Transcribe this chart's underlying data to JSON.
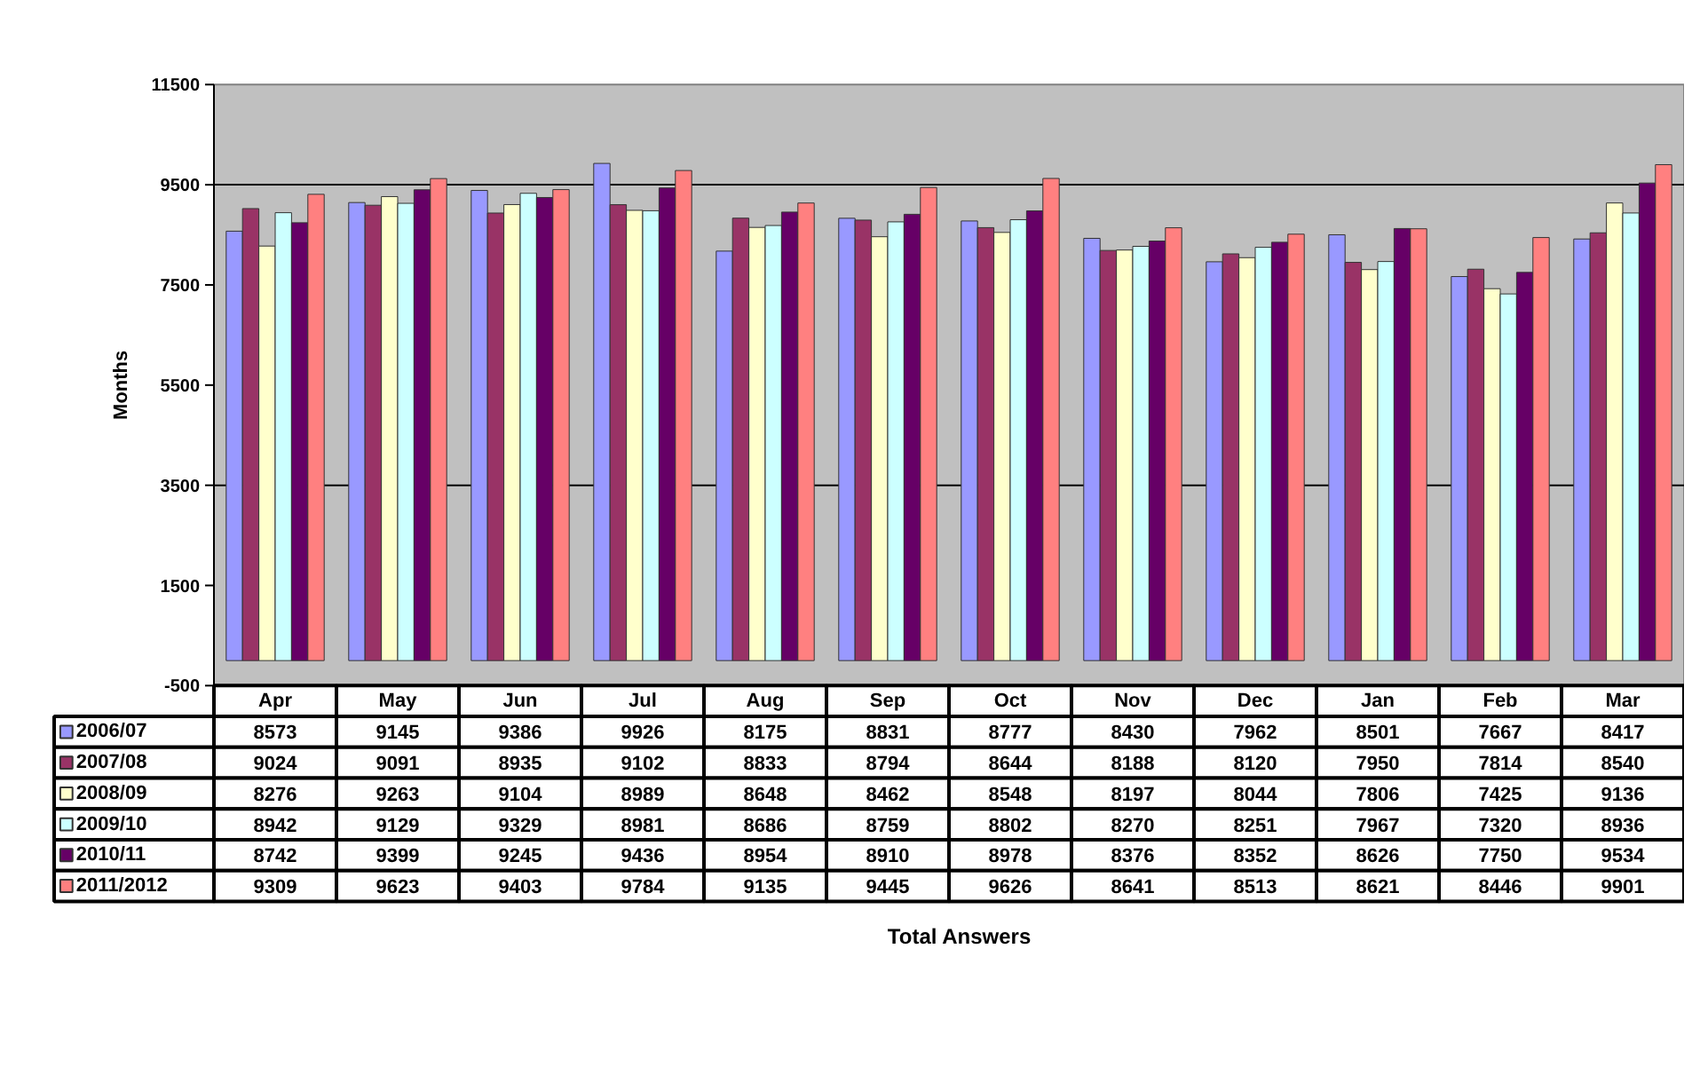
{
  "chart_data": {
    "type": "bar",
    "ylabel": "Months",
    "annotations": [
      "Total Answers"
    ],
    "categories": [
      "Apr",
      "May",
      "Jun",
      "Jul",
      "Aug",
      "Sep",
      "Oct",
      "Nov",
      "Dec",
      "Jan",
      "Feb",
      "Mar"
    ],
    "series": [
      {
        "name": "2006/07",
        "color": "#9999ff",
        "values": [
          8573,
          9145,
          9386,
          9926,
          8175,
          8831,
          8777,
          8430,
          7962,
          8501,
          7667,
          8417
        ]
      },
      {
        "name": "2007/08",
        "color": "#993366",
        "values": [
          9024,
          9091,
          8935,
          9102,
          8833,
          8794,
          8644,
          8188,
          8120,
          7950,
          7814,
          8540
        ]
      },
      {
        "name": "2008/09",
        "color": "#ffffcc",
        "values": [
          8276,
          9263,
          9104,
          8989,
          8648,
          8462,
          8548,
          8197,
          8044,
          7806,
          7425,
          9136
        ]
      },
      {
        "name": "2009/10",
        "color": "#ccffff",
        "values": [
          8942,
          9129,
          9329,
          8981,
          8686,
          8759,
          8802,
          8270,
          8251,
          7967,
          7320,
          8936
        ]
      },
      {
        "name": "2010/11",
        "color": "#660066",
        "values": [
          8742,
          9399,
          9245,
          9436,
          8954,
          8910,
          8978,
          8376,
          8352,
          8626,
          7750,
          9534
        ]
      },
      {
        "name": "2011/2012",
        "color": "#ff8080",
        "values": [
          9309,
          9623,
          9403,
          9784,
          9135,
          9445,
          9626,
          8641,
          8513,
          8621,
          8446,
          9901
        ]
      }
    ],
    "ylim": [
      -500,
      11500
    ],
    "yticks": [
      -500,
      1500,
      3500,
      5500,
      7500,
      9500,
      11500
    ],
    "ref_lines": [
      {
        "axis": "y",
        "value": 3500,
        "color": "#000000"
      },
      {
        "axis": "y",
        "value": 9500,
        "color": "#000000"
      }
    ],
    "data_labels": true,
    "legend": "bottom left"
  }
}
